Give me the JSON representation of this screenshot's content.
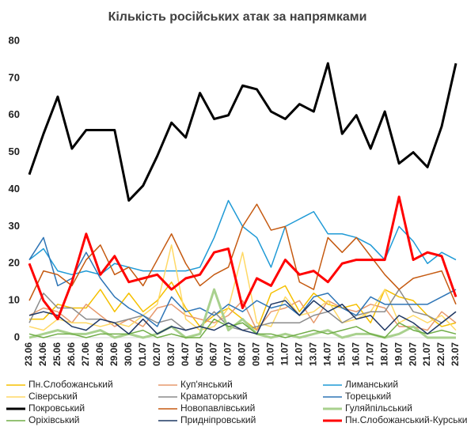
{
  "chart_data": {
    "type": "line",
    "title": "Кількість російських атак за напрямками",
    "categories": [
      "23.06",
      "24.06",
      "25.06",
      "26.06",
      "27.06",
      "28.06",
      "29.06",
      "30.06",
      "01.07",
      "02.07",
      "03.07",
      "04.07",
      "05.07",
      "06.07",
      "07.07",
      "08.07",
      "09.07",
      "10.07",
      "11.07",
      "12.07",
      "13.07",
      "14.07",
      "15.07",
      "16.07",
      "17.07",
      "18.07",
      "19.07",
      "20.07",
      "21.07",
      "22.07",
      "23.07"
    ],
    "ylim": [
      0,
      80
    ],
    "yticks": [
      0,
      10,
      20,
      30,
      40,
      50,
      60,
      70,
      80
    ],
    "grid": false,
    "series": [
      {
        "name": "Пн.Слобожанський",
        "color": "#f5c000",
        "line_width": 1.5,
        "values": [
          5,
          5,
          9,
          8,
          8,
          13,
          7,
          12,
          7,
          10,
          15,
          8,
          3,
          6,
          8,
          5,
          2,
          12,
          14,
          7,
          12,
          9,
          8,
          9,
          4,
          13,
          11,
          10,
          6,
          3,
          4
        ]
      },
      {
        "name": "Куп'янський",
        "color": "#e79a6e",
        "line_width": 1.5,
        "values": [
          6,
          8,
          7,
          4,
          9,
          6,
          3,
          5,
          3,
          8,
          9,
          6,
          5,
          4,
          6,
          10,
          2,
          7,
          8,
          10,
          4,
          10,
          8,
          7,
          9,
          8,
          3,
          3,
          2,
          7,
          4
        ]
      },
      {
        "name": "Лиманський",
        "color": "#1f9ad6",
        "line_width": 1.5,
        "values": [
          21,
          24,
          18,
          17,
          18,
          17,
          20,
          19,
          18,
          18,
          18,
          18,
          19,
          27,
          37,
          30,
          27,
          19,
          30,
          32,
          34,
          28,
          28,
          27,
          25,
          21,
          30,
          26,
          20,
          23,
          21
        ]
      },
      {
        "name": "Сіверський",
        "color": "#ffd966",
        "line_width": 1.5,
        "values": [
          3,
          2,
          5,
          4,
          4,
          3,
          4,
          3,
          6,
          9,
          25,
          5,
          2,
          3,
          8,
          23,
          4,
          3,
          11,
          6,
          7,
          10,
          4,
          5,
          7,
          13,
          4,
          6,
          4,
          6,
          2
        ]
      },
      {
        "name": "Краматорський",
        "color": "#8c8c8c",
        "line_width": 1.5,
        "values": [
          4,
          12,
          8,
          8,
          5,
          5,
          4,
          5,
          6,
          4,
          5,
          2,
          3,
          7,
          3,
          2,
          3,
          4,
          4,
          4,
          6,
          7,
          4,
          6,
          7,
          7,
          13,
          7,
          6,
          4,
          7
        ]
      },
      {
        "name": "Торецький",
        "color": "#2e75b6",
        "line_width": 1.5,
        "values": [
          21,
          27,
          14,
          16,
          23,
          16,
          11,
          8,
          6,
          3,
          11,
          7,
          8,
          6,
          9,
          7,
          10,
          8,
          9,
          6,
          11,
          12,
          8,
          6,
          11,
          9,
          9,
          9,
          9,
          11,
          13
        ]
      },
      {
        "name": "Покровський",
        "color": "#000000",
        "line_width": 3,
        "values": [
          44,
          55,
          65,
          51,
          56,
          56,
          56,
          37,
          41,
          49,
          58,
          54,
          66,
          59,
          60,
          68,
          67,
          61,
          59,
          63,
          61,
          74,
          55,
          60,
          51,
          61,
          47,
          50,
          46,
          57,
          74
        ]
      },
      {
        "name": "Новопавлівський",
        "color": "#c55a11",
        "line_width": 1.5,
        "values": [
          10,
          18,
          17,
          14,
          21,
          25,
          17,
          19,
          14,
          21,
          28,
          20,
          14,
          17,
          19,
          30,
          36,
          29,
          30,
          15,
          13,
          27,
          23,
          27,
          22,
          17,
          13,
          16,
          17,
          18,
          9
        ]
      },
      {
        "name": "Гуляйпільський",
        "color": "#a9d18e",
        "line_width": 3,
        "values": [
          0,
          1,
          2,
          1,
          1,
          2,
          0,
          1,
          0,
          1,
          3,
          0,
          1,
          13,
          2,
          5,
          1,
          0,
          1,
          0,
          1,
          2,
          0,
          1,
          1,
          0,
          1,
          3,
          0,
          0,
          0
        ]
      },
      {
        "name": "Оріхівський",
        "color": "#70ad47",
        "line_width": 1.5,
        "values": [
          1,
          0,
          1,
          1,
          0,
          1,
          1,
          1,
          2,
          0,
          1,
          0,
          0,
          5,
          3,
          4,
          1,
          1,
          0,
          1,
          2,
          1,
          2,
          3,
          1,
          0,
          4,
          2,
          1,
          2,
          1
        ]
      },
      {
        "name": "Придніпровський",
        "color": "#1f3864",
        "line_width": 1.5,
        "values": [
          6,
          7,
          6,
          3,
          2,
          5,
          4,
          1,
          5,
          1,
          3,
          2,
          3,
          2,
          4,
          2,
          1,
          9,
          10,
          6,
          10,
          7,
          9,
          5,
          6,
          2,
          6,
          4,
          1,
          4,
          7
        ]
      },
      {
        "name": "Пн.Слобожанський-Курський",
        "color": "#ff0000",
        "line_width": 3,
        "values": [
          20,
          10,
          5,
          15,
          28,
          17,
          22,
          15,
          16,
          17,
          13,
          16,
          17,
          23,
          24,
          8,
          16,
          14,
          21,
          17,
          18,
          15,
          20,
          21,
          21,
          21,
          38,
          21,
          23,
          22,
          11
        ]
      }
    ]
  }
}
